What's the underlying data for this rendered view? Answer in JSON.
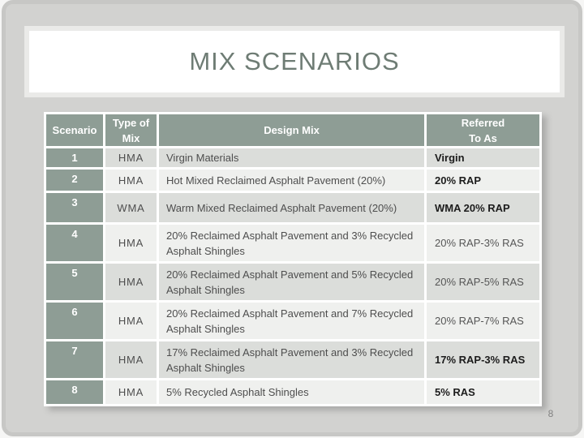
{
  "slide": {
    "title": "MIX SCENARIOS",
    "page_number": "8"
  },
  "table": {
    "columns": [
      "Scenario",
      "Type of\nMix",
      "Design Mix",
      "Referred\nTo As"
    ],
    "rows": [
      {
        "scenario": "1",
        "type": "HMA",
        "design": "Virgin Materials",
        "referred": "Virgin",
        "referred_bold": true
      },
      {
        "scenario": "2",
        "type": "HMA",
        "design": "Hot Mixed Reclaimed Asphalt Pavement (20%)",
        "referred": "20% RAP",
        "referred_bold": true
      },
      {
        "scenario": "3",
        "type": "WMA",
        "design": "Warm Mixed Reclaimed Asphalt Pavement (20%)",
        "referred": "WMA 20% RAP",
        "referred_bold": true
      },
      {
        "scenario": "4",
        "type": "HMA",
        "design": "20% Reclaimed Asphalt Pavement and 3% Recycled Asphalt Shingles",
        "referred": "20% RAP-3% RAS",
        "referred_bold": false
      },
      {
        "scenario": "5",
        "type": "HMA",
        "design": "20% Reclaimed Asphalt Pavement and 5% Recycled Asphalt Shingles",
        "referred": "20% RAP-5% RAS",
        "referred_bold": false
      },
      {
        "scenario": "6",
        "type": "HMA",
        "design": "20% Reclaimed Asphalt Pavement and 7% Recycled Asphalt Shingles",
        "referred": "20% RAP-7% RAS",
        "referred_bold": false
      },
      {
        "scenario": "7",
        "type": "HMA",
        "design": "17% Reclaimed Asphalt Pavement and 3% Recycled Asphalt Shingles",
        "referred": "17% RAP-3% RAS",
        "referred_bold": true
      },
      {
        "scenario": "8",
        "type": "HMA",
        "design": "5% Recycled Asphalt Shingles",
        "referred": "5% RAS",
        "referred_bold": true
      }
    ]
  },
  "colors": {
    "header_bg": "#8e9d95",
    "band_dark": "#dbddda",
    "band_light": "#eff0ee",
    "slide_bg": "#d2d2d0",
    "title_text": "#6e7c74",
    "body_text": "#4e4e4e",
    "bold_text": "#1c1c1c"
  }
}
